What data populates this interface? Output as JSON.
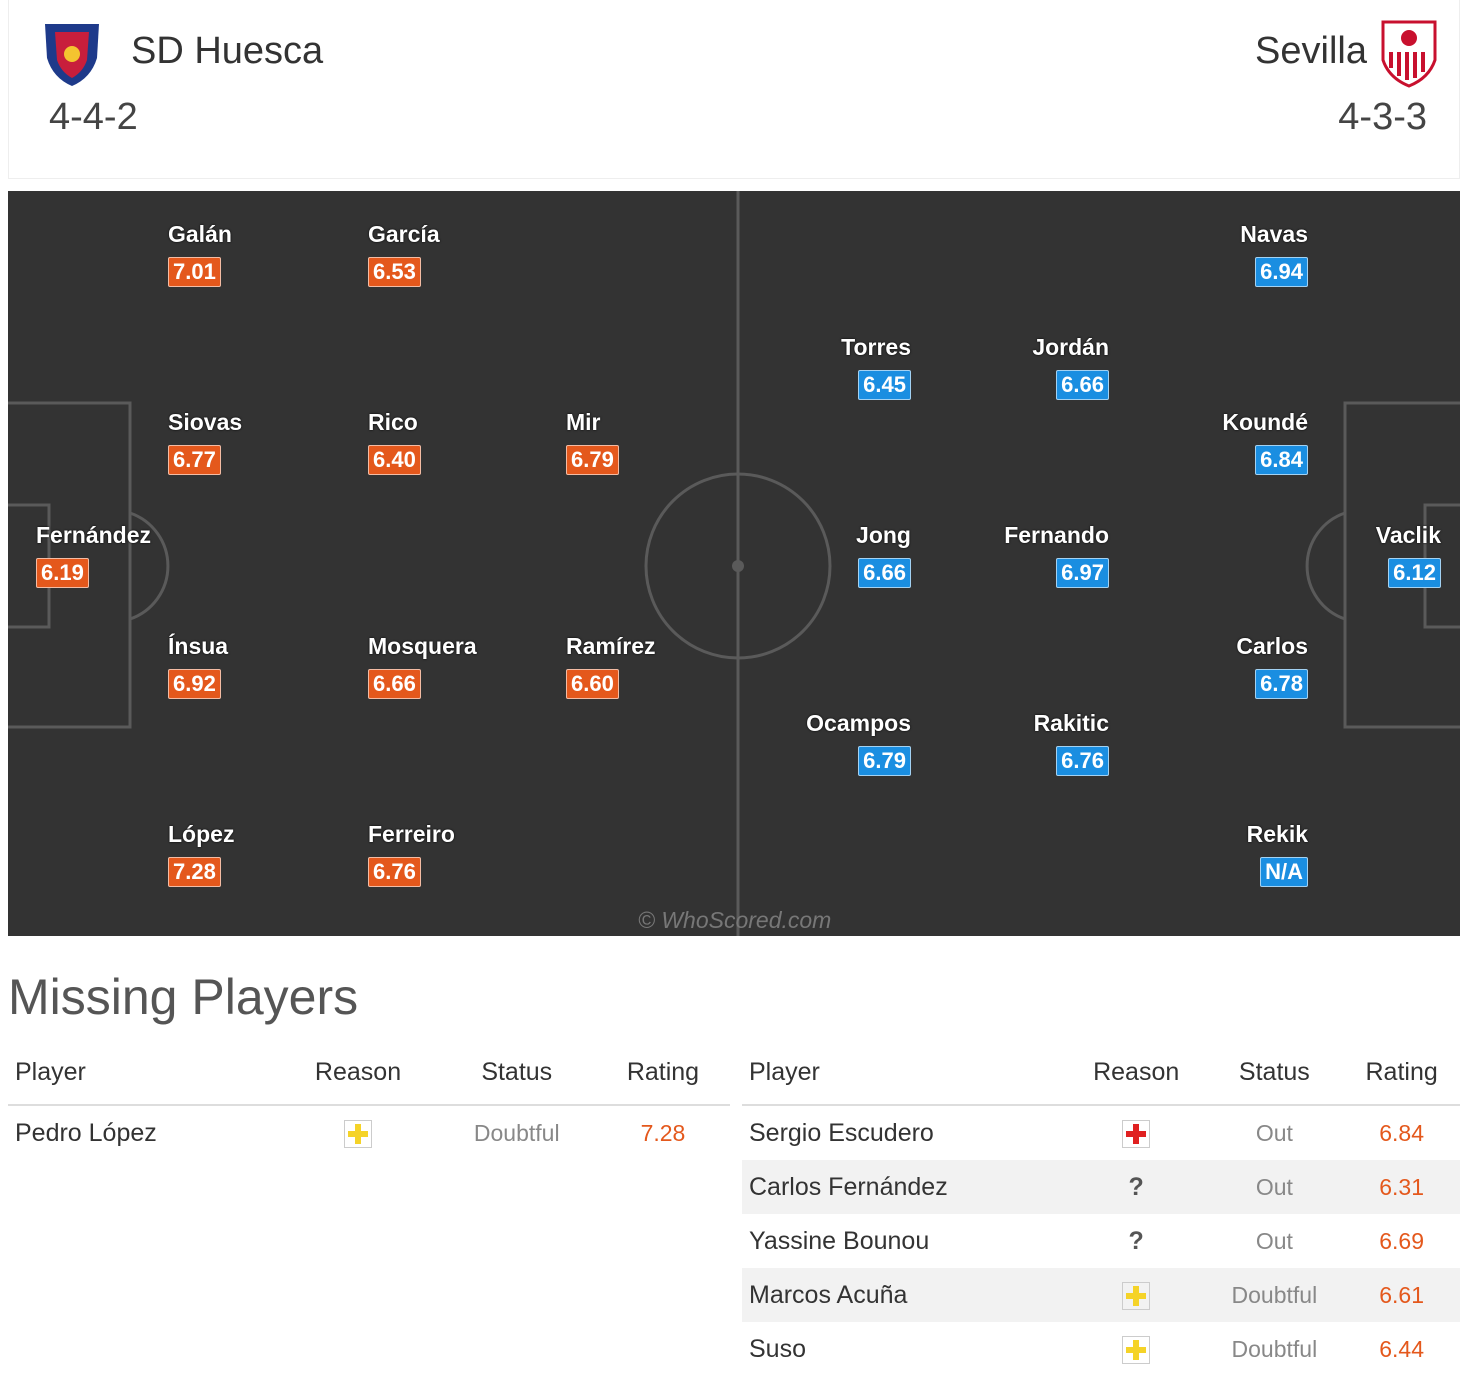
{
  "header": {
    "home": {
      "name": "SD Huesca",
      "formation": "4-4-2"
    },
    "away": {
      "name": "Sevilla",
      "formation": "4-3-3"
    }
  },
  "pitch": {
    "watermark": "© WhoScored.com",
    "home_players": [
      {
        "name": "Galán",
        "rating": "7.01"
      },
      {
        "name": "García",
        "rating": "6.53"
      },
      {
        "name": "Siovas",
        "rating": "6.77"
      },
      {
        "name": "Rico",
        "rating": "6.40"
      },
      {
        "name": "Mir",
        "rating": "6.79"
      },
      {
        "name": "Fernández",
        "rating": "6.19"
      },
      {
        "name": "Ínsua",
        "rating": "6.92"
      },
      {
        "name": "Mosquera",
        "rating": "6.66"
      },
      {
        "name": "Ramírez",
        "rating": "6.60"
      },
      {
        "name": "López",
        "rating": "7.28"
      },
      {
        "name": "Ferreiro",
        "rating": "6.76"
      }
    ],
    "away_players": [
      {
        "name": "Navas",
        "rating": "6.94"
      },
      {
        "name": "Torres",
        "rating": "6.45"
      },
      {
        "name": "Jordán",
        "rating": "6.66"
      },
      {
        "name": "Koundé",
        "rating": "6.84"
      },
      {
        "name": "Jong",
        "rating": "6.66"
      },
      {
        "name": "Fernando",
        "rating": "6.97"
      },
      {
        "name": "Vaclik",
        "rating": "6.12"
      },
      {
        "name": "Carlos",
        "rating": "6.78"
      },
      {
        "name": "Ocampos",
        "rating": "6.79"
      },
      {
        "name": "Rakitic",
        "rating": "6.76"
      },
      {
        "name": "Rekik",
        "rating": "N/A"
      }
    ]
  },
  "missing": {
    "title": "Missing Players",
    "columns": [
      "Player",
      "Reason",
      "Status",
      "Rating"
    ],
    "home_rows": [
      {
        "player": "Pedro López",
        "status": "Doubtful",
        "rating": "7.28"
      }
    ],
    "away_rows": [
      {
        "player": "Sergio Escudero",
        "status": "Out",
        "rating": "6.84"
      },
      {
        "player": "Carlos Fernández",
        "reason": "?",
        "status": "Out",
        "rating": "6.31"
      },
      {
        "player": "Yassine Bounou",
        "reason": "?",
        "status": "Out",
        "rating": "6.69"
      },
      {
        "player": "Marcos Acuña",
        "status": "Doubtful",
        "rating": "6.61"
      },
      {
        "player": "Suso",
        "status": "Doubtful",
        "rating": "6.44"
      }
    ]
  }
}
